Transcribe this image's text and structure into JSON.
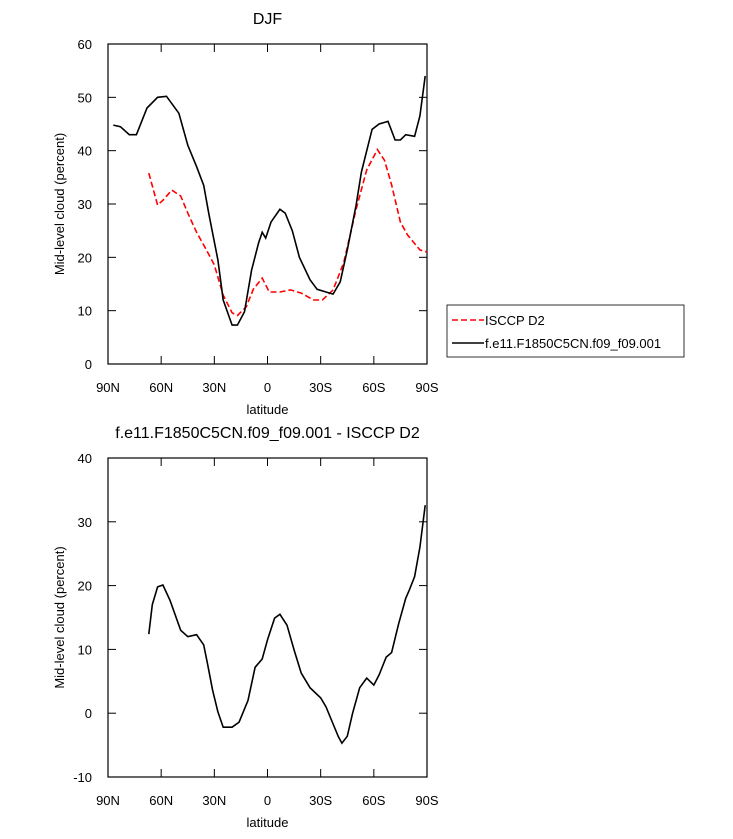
{
  "chart_data": [
    {
      "type": "line",
      "title": "DJF",
      "xlabel": "latitude",
      "ylabel": "Mid-level cloud (percent)",
      "xlim": [
        90,
        -90
      ],
      "xticks": [
        {
          "value": 90,
          "label": "90N"
        },
        {
          "value": 60,
          "label": "60N"
        },
        {
          "value": 30,
          "label": "30N"
        },
        0,
        {
          "value": -30,
          "label": "30S"
        },
        {
          "value": -60,
          "label": "60S"
        },
        {
          "value": -90,
          "label": "90S"
        }
      ],
      "ylim": [
        0,
        60
      ],
      "yticks": [
        0,
        10,
        20,
        30,
        40,
        50,
        60
      ],
      "legend": "right",
      "series": [
        {
          "name": "ISCCP D2",
          "color": "#ff0000",
          "dashed": true,
          "x": [
            67,
            62,
            59,
            54,
            49,
            45,
            40,
            35,
            30,
            25,
            20,
            17,
            12,
            8,
            3,
            -1,
            -7,
            -13,
            -19,
            -26,
            -31,
            -37,
            -43,
            -50,
            -56,
            -62,
            -66,
            -70,
            -75,
            -79,
            -86,
            -90
          ],
          "values": [
            35.8,
            29.8,
            30.7,
            32.6,
            31.5,
            28.3,
            24.7,
            21.7,
            18.6,
            12.9,
            9.6,
            9.1,
            10.7,
            14,
            16.1,
            13.5,
            13.5,
            13.9,
            13.3,
            12,
            12,
            13.9,
            19,
            29,
            36.4,
            40.2,
            38.2,
            33.6,
            26.6,
            24.2,
            21.4,
            21
          ]
        },
        {
          "name": "f.e11.F1850C5CN.f09_f09.001",
          "color": "#000000",
          "dashed": false,
          "x": [
            87,
            83,
            78,
            74,
            68,
            62,
            57,
            50,
            45,
            40,
            36,
            33,
            28,
            25,
            20,
            17,
            13,
            9,
            5,
            3,
            1,
            -2,
            -7,
            -10,
            -14,
            -18,
            -24,
            -28,
            -33,
            -37,
            -41,
            -45,
            -50,
            -53,
            -59,
            -63,
            -68,
            -72,
            -75,
            -78,
            -83,
            -86,
            -89
          ],
          "values": [
            44.8,
            44.5,
            43,
            43,
            48,
            50,
            50.2,
            47,
            41,
            37,
            33.5,
            28,
            19.5,
            12,
            7.3,
            7.3,
            9.8,
            17.6,
            22.7,
            24.7,
            23.6,
            26.6,
            29,
            28.3,
            25,
            20,
            15.8,
            14,
            13.5,
            13.1,
            15.4,
            21.4,
            29.8,
            36,
            44,
            45,
            45.5,
            42,
            42,
            43,
            42.7,
            46.5,
            54
          ]
        }
      ]
    },
    {
      "type": "line",
      "title": "f.e11.F1850C5CN.f09_f09.001 - ISCCP D2",
      "xlabel": "latitude",
      "ylabel": "Mid-level cloud (percent)",
      "xlim": [
        90,
        -90
      ],
      "xticks": [
        {
          "value": 90,
          "label": "90N"
        },
        {
          "value": 60,
          "label": "60N"
        },
        {
          "value": 30,
          "label": "30N"
        },
        0,
        {
          "value": -30,
          "label": "30S"
        },
        {
          "value": -60,
          "label": "60S"
        },
        {
          "value": -90,
          "label": "90S"
        }
      ],
      "ylim": [
        -10,
        40
      ],
      "yticks": [
        -10,
        0,
        10,
        20,
        30,
        40
      ],
      "series": [
        {
          "color": "#000000",
          "dashed": false,
          "x": [
            67,
            65,
            62,
            59,
            55,
            49,
            45,
            40,
            36,
            34,
            31,
            28,
            25,
            20,
            16,
            11,
            7,
            3,
            0,
            -4,
            -7,
            -11,
            -15,
            -19,
            -24,
            -30,
            -33,
            -37,
            -40,
            -42,
            -45,
            -48,
            -52,
            -56,
            -60,
            -63,
            -67,
            -70,
            -74,
            -78,
            -80,
            -83,
            -86,
            -89
          ],
          "values": [
            12.4,
            17,
            19.8,
            20.1,
            17.7,
            13,
            12,
            12.3,
            10.7,
            8,
            3.6,
            0.2,
            -2.2,
            -2.2,
            -1.4,
            2,
            7.2,
            8.5,
            11.5,
            14.9,
            15.5,
            13.8,
            9.9,
            6.3,
            4,
            2.4,
            1,
            -1.7,
            -3.7,
            -4.7,
            -3.6,
            0,
            4,
            5.5,
            4.4,
            6,
            8.8,
            9.5,
            14,
            18,
            19.3,
            21.4,
            26,
            32.6
          ]
        }
      ]
    }
  ]
}
